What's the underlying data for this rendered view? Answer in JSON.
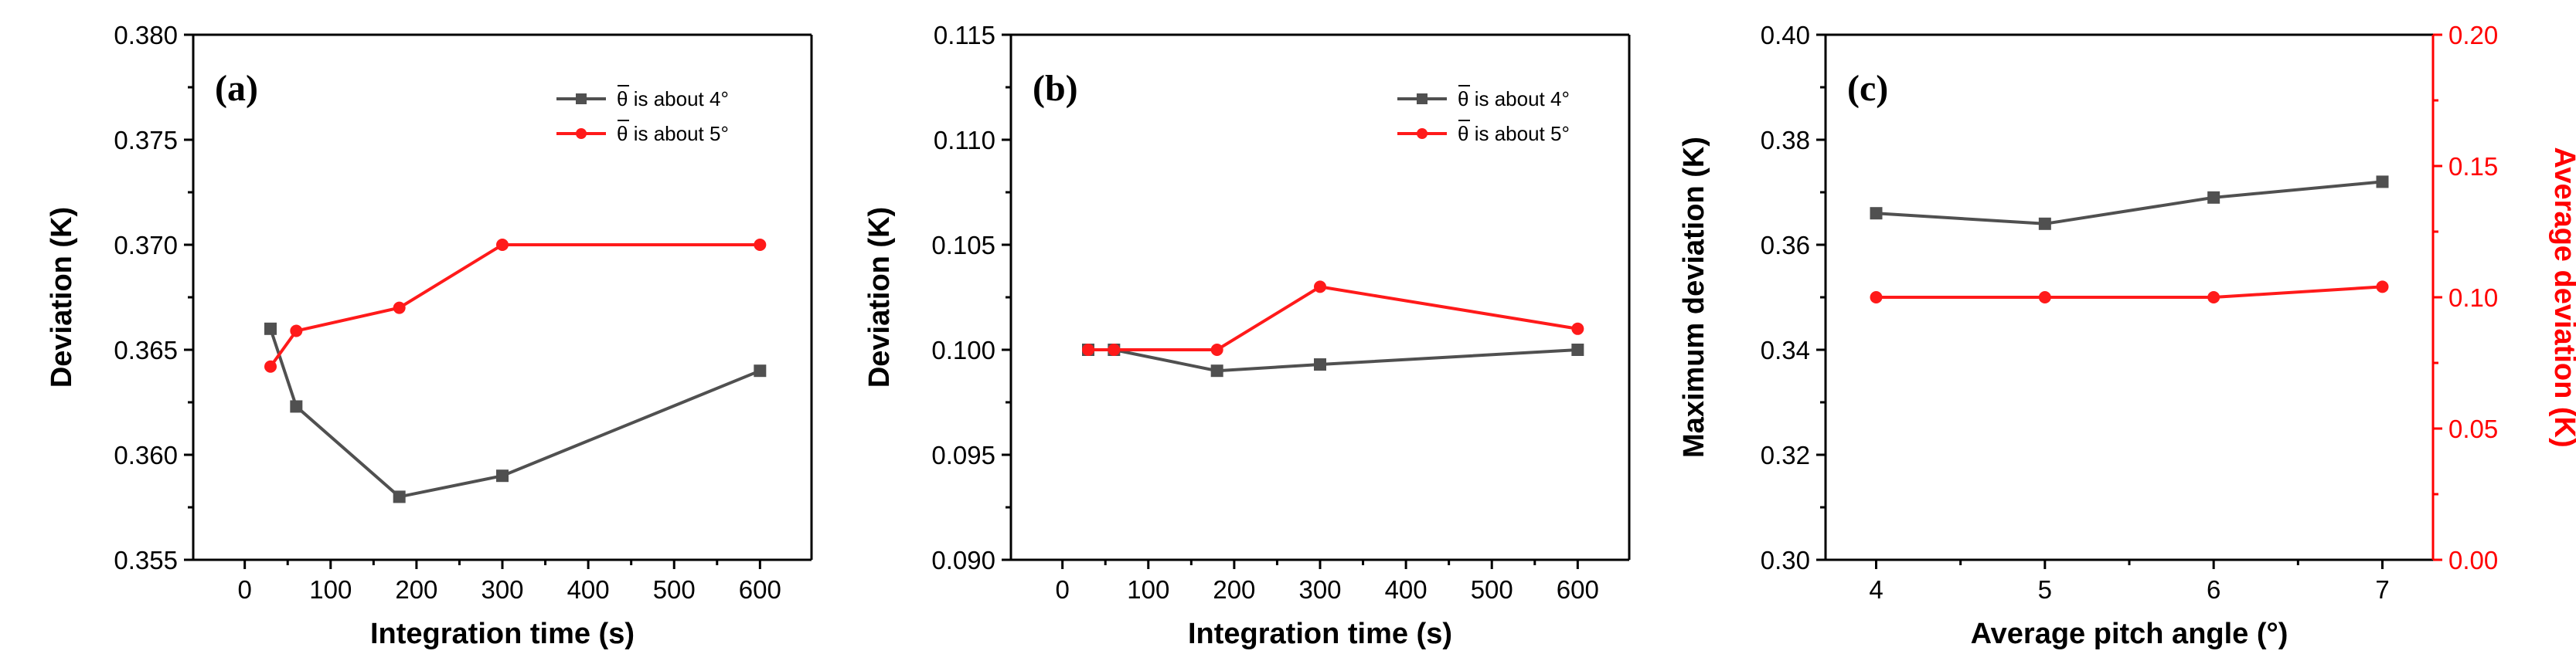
{
  "colors": {
    "series_gray": "#505050",
    "series_red": "#ff1a1a",
    "axis": "#000000",
    "right_axis": "#ff0000"
  },
  "chart_data": [
    {
      "type": "line",
      "panel_label": "(a)",
      "xlabel": "Integration time (s)",
      "ylabel": "Deviation (K)",
      "xlim": [
        -60,
        660
      ],
      "ylim": [
        0.355,
        0.38
      ],
      "xticks": [
        0,
        100,
        200,
        300,
        400,
        500,
        600
      ],
      "xtick_labels": [
        "0",
        "100",
        "200",
        "300",
        "400",
        "500",
        "600"
      ],
      "yticks": [
        0.355,
        0.36,
        0.365,
        0.37,
        0.375,
        0.38
      ],
      "ytick_labels": [
        "0.355",
        "0.360",
        "0.365",
        "0.370",
        "0.375",
        "0.380"
      ],
      "legend_position": "top-right",
      "series": [
        {
          "name": "θ̄ is about 4°",
          "legend_theta": "θ",
          "legend_rest": " is about 4°",
          "color": "#505050",
          "marker": "square",
          "x": [
            30,
            60,
            180,
            300,
            600
          ],
          "values": [
            0.366,
            0.3623,
            0.358,
            0.359,
            0.364
          ]
        },
        {
          "name": "θ̄ is about 5°",
          "legend_theta": "θ",
          "legend_rest": " is about 5°",
          "color": "#ff1a1a",
          "marker": "circle",
          "x": [
            30,
            60,
            180,
            300,
            600
          ],
          "values": [
            0.3642,
            0.3659,
            0.367,
            0.37,
            0.37
          ]
        }
      ]
    },
    {
      "type": "line",
      "panel_label": "(b)",
      "xlabel": "Integration time (s)",
      "ylabel": "Deviation (K)",
      "xlim": [
        -60,
        660
      ],
      "ylim": [
        0.09,
        0.115
      ],
      "xticks": [
        0,
        100,
        200,
        300,
        400,
        500,
        600
      ],
      "xtick_labels": [
        "0",
        "100",
        "200",
        "300",
        "400",
        "500",
        "600"
      ],
      "yticks": [
        0.09,
        0.095,
        0.1,
        0.105,
        0.11,
        0.115
      ],
      "ytick_labels": [
        "0.090",
        "0.095",
        "0.100",
        "0.105",
        "0.110",
        "0.115"
      ],
      "legend_position": "top-right",
      "series": [
        {
          "name": "θ̄ is about 4°",
          "legend_theta": "θ",
          "legend_rest": " is about 4°",
          "color": "#505050",
          "marker": "square",
          "x": [
            30,
            60,
            180,
            300,
            600
          ],
          "values": [
            0.1,
            0.1,
            0.099,
            0.0993,
            0.1
          ]
        },
        {
          "name": "θ̄ is about 5°",
          "legend_theta": "θ",
          "legend_rest": " is about 5°",
          "color": "#ff1a1a",
          "marker": "circle",
          "x": [
            30,
            60,
            180,
            300,
            600
          ],
          "values": [
            0.1,
            0.1,
            0.1,
            0.103,
            0.101
          ]
        }
      ]
    },
    {
      "type": "line",
      "panel_label": "(c)",
      "xlabel": "Average pitch angle (°)",
      "ylabel": "Maximum deviation (K)",
      "y2label": "Average deviation (K)",
      "xlim": [
        3.7,
        7.3
      ],
      "ylim": [
        0.3,
        0.4
      ],
      "y2lim": [
        0.0,
        0.2
      ],
      "xticks": [
        4,
        5,
        6,
        7
      ],
      "xtick_labels": [
        "4",
        "5",
        "6",
        "7"
      ],
      "yticks": [
        0.3,
        0.32,
        0.34,
        0.36,
        0.38,
        0.4
      ],
      "ytick_labels": [
        "0.30",
        "0.32",
        "0.34",
        "0.36",
        "0.38",
        "0.40"
      ],
      "y2ticks": [
        0.0,
        0.05,
        0.1,
        0.15,
        0.2
      ],
      "y2tick_labels": [
        "0.00",
        "0.05",
        "0.10",
        "0.15",
        "0.20"
      ],
      "series": [
        {
          "name": "Maximum deviation",
          "axis": "left",
          "color": "#505050",
          "marker": "square",
          "x": [
            4,
            5,
            6,
            7
          ],
          "values": [
            0.366,
            0.364,
            0.369,
            0.372
          ]
        },
        {
          "name": "Average deviation",
          "axis": "right",
          "color": "#ff1a1a",
          "marker": "circle",
          "x": [
            4,
            5,
            6,
            7
          ],
          "values": [
            0.1,
            0.1,
            0.1,
            0.104
          ]
        }
      ]
    }
  ]
}
